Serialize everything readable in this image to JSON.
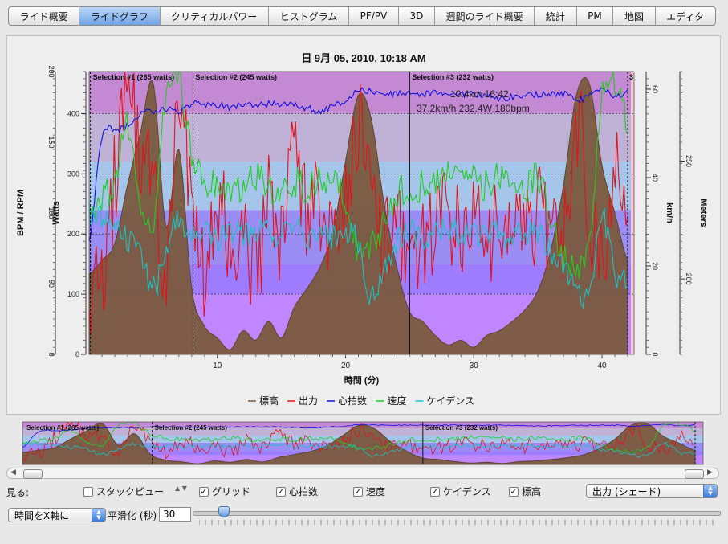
{
  "tabs": [
    {
      "label": "ライド概要",
      "active": false
    },
    {
      "label": "ライドグラフ",
      "active": true
    },
    {
      "label": "クリティカルパワー",
      "active": false
    },
    {
      "label": "ヒストグラム",
      "active": false
    },
    {
      "label": "PF/PV",
      "active": false
    },
    {
      "label": "3D",
      "active": false
    },
    {
      "label": "週間のライド概要",
      "active": false
    },
    {
      "label": "統計",
      "active": false
    },
    {
      "label": "PM",
      "active": false
    },
    {
      "label": "地図",
      "active": false
    },
    {
      "label": "エディタ",
      "active": false
    }
  ],
  "chart": {
    "title": "日 9月 05, 2010, 10:18 AM",
    "xlabel": "時間 (分)",
    "left_outer_label": "BPM / RPM",
    "left_inner_label": "Watts",
    "right_inner_label": "km/h",
    "right_outer_label": "Meters",
    "hover_line1": "10.4km 16:42",
    "hover_line2": "37.2km/h 232.4W 180bpm",
    "selections": [
      "Selection #1 (265 watts)",
      "Selection #2 (245 watts)",
      "Selection #3 (232 watts)",
      "3"
    ],
    "mini_selections": [
      "Selection #1 (265 watts)",
      "Selection #2 (245 watts)",
      "Selection #3 (232 watts)"
    ],
    "legend": [
      {
        "name": "標高",
        "color": "#7a5a3e"
      },
      {
        "name": "出力",
        "color": "#e0141c"
      },
      {
        "name": "心拍数",
        "color": "#1010e0"
      },
      {
        "name": "速度",
        "color": "#22cc22"
      },
      {
        "name": "ケイデンス",
        "color": "#19c3c3"
      }
    ]
  },
  "chart_data": {
    "type": "line",
    "title": "日 9月 05, 2010, 10:18 AM",
    "xlabel": "時間 (分)",
    "ylabel": "Watts",
    "xlim": [
      0,
      42.5
    ],
    "x_ticks": [
      "10",
      "20",
      "30",
      "40"
    ],
    "axes": {
      "bpm_rpm": {
        "label": "BPM / RPM",
        "ticks": [
          "0",
          "50",
          "100",
          "150",
          "200"
        ],
        "range": [
          0,
          200
        ]
      },
      "watts": {
        "label": "Watts",
        "ticks": [
          "0",
          "100",
          "200",
          "300",
          "400"
        ],
        "range": [
          0,
          470
        ]
      },
      "kmh": {
        "label": "km/h",
        "ticks": [
          "0",
          "20",
          "40",
          "60"
        ],
        "range": [
          0,
          64
        ]
      },
      "meters": {
        "label": "Meters",
        "ticks": [
          "200",
          "250"
        ],
        "range": [
          168,
          288
        ]
      }
    },
    "x": [
      0,
      1,
      2,
      3,
      4,
      5,
      6,
      7,
      8,
      9,
      10,
      11,
      12,
      13,
      14,
      15,
      16,
      17,
      18,
      19,
      20,
      21,
      22,
      23,
      24,
      25,
      26,
      27,
      28,
      29,
      30,
      31,
      32,
      33,
      34,
      35,
      36,
      37,
      38,
      39,
      40,
      41,
      42
    ],
    "series": [
      {
        "name": "標高",
        "axis": "meters",
        "color": "#7a5a3e",
        "values": [
          202,
          208,
          215,
          240,
          262,
          283,
          222,
          255,
          196,
          180,
          175,
          170,
          178,
          174,
          182,
          175,
          188,
          196,
          205,
          220,
          250,
          278,
          268,
          232,
          205,
          186,
          182,
          176,
          172,
          174,
          171,
          176,
          178,
          182,
          187,
          195,
          212,
          240,
          278,
          283,
          248,
          228,
          208
        ]
      },
      {
        "name": "出力",
        "axis": "watts",
        "color": "#e0141c",
        "values": [
          100,
          140,
          290,
          420,
          330,
          270,
          160,
          410,
          230,
          140,
          260,
          180,
          230,
          120,
          260,
          190,
          320,
          230,
          250,
          180,
          240,
          380,
          250,
          200,
          220,
          170,
          180,
          215,
          225,
          205,
          240,
          170,
          220,
          205,
          190,
          230,
          215,
          200,
          385,
          240,
          170,
          290,
          210
        ]
      },
      {
        "name": "心拍数",
        "axis": "bpm_rpm",
        "color": "#1010e0",
        "values": [
          80,
          154,
          158,
          162,
          170,
          172,
          173,
          172,
          177,
          177,
          176,
          175,
          176,
          176,
          177,
          177,
          176,
          174,
          172,
          175,
          180,
          186,
          186,
          184,
          184,
          184,
          184,
          185,
          185,
          184,
          184,
          183,
          181,
          182,
          183,
          184,
          184,
          184,
          180,
          182,
          188,
          182,
          186
        ]
      },
      {
        "name": "速度",
        "axis": "kmh",
        "color": "#22cc22",
        "values": [
          30,
          34,
          40,
          52,
          34,
          30,
          60,
          62,
          45,
          40,
          38,
          37,
          38,
          40,
          38,
          38,
          39,
          38,
          39,
          40,
          34,
          22,
          25,
          30,
          36,
          38,
          38,
          40,
          40,
          42,
          40,
          38,
          40,
          40,
          38,
          40,
          30,
          22,
          20,
          26,
          58,
          62,
          52
        ]
      },
      {
        "name": "ケイデンス",
        "axis": "bpm_rpm",
        "color": "#19c3c3",
        "values": [
          98,
          100,
          92,
          80,
          75,
          45,
          75,
          95,
          85,
          85,
          82,
          88,
          86,
          86,
          85,
          82,
          90,
          84,
          82,
          84,
          88,
          78,
          40,
          62,
          80,
          86,
          84,
          85,
          88,
          85,
          84,
          86,
          85,
          84,
          86,
          85,
          72,
          62,
          45,
          40,
          95,
          60,
          50
        ]
      }
    ],
    "selections": [
      {
        "label": "Selection #1 (265 watts)",
        "start": 0.1,
        "end": 8.1
      },
      {
        "label": "Selection #2 (245 watts)",
        "start": 8.1,
        "end": 25.0
      },
      {
        "label": "Selection #3 (232 watts)",
        "start": 25.0,
        "end": 42.0
      }
    ],
    "grid": true,
    "legend_position": "bottom"
  },
  "controls": {
    "view_label": "見る:",
    "checkboxes": [
      {
        "label": "スタックビュー",
        "checked": false
      },
      {
        "label": "グリッド",
        "checked": true
      },
      {
        "label": "心拍数",
        "checked": true
      },
      {
        "label": "速度",
        "checked": true
      },
      {
        "label": "ケイデンス",
        "checked": true
      },
      {
        "label": "標高",
        "checked": true
      }
    ],
    "shade_select": "出力 (シェード)",
    "axis_select": "時間をX軸に",
    "smoothing_label": "平滑化 (秒)",
    "smoothing_value": "30",
    "smoothing_level": 0.05
  }
}
